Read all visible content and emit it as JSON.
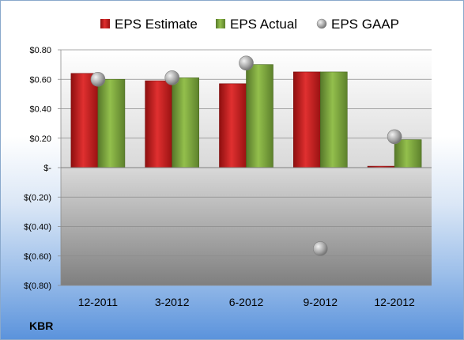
{
  "chart_data": {
    "type": "bar",
    "ticker": "KBR",
    "categories": [
      "12-2011",
      "3-2012",
      "6-2012",
      "9-2012",
      "12-2012"
    ],
    "series": [
      {
        "name": "EPS Estimate",
        "kind": "bar",
        "color": "#cc1f1f",
        "values": [
          0.64,
          0.59,
          0.57,
          0.65,
          0.01
        ]
      },
      {
        "name": "EPS Actual",
        "kind": "bar",
        "color": "#7eaa3a",
        "values": [
          0.6,
          0.61,
          0.7,
          0.65,
          0.19
        ]
      },
      {
        "name": "EPS GAAP",
        "kind": "marker",
        "color": "#a6a6a6",
        "values": [
          0.6,
          0.61,
          0.71,
          -0.55,
          0.21
        ]
      }
    ],
    "y_ticks": [
      0.8,
      0.6,
      0.4,
      0.2,
      0,
      -0.2,
      -0.4,
      -0.6,
      -0.8
    ],
    "y_tick_labels": [
      "$0.80",
      "$0.60",
      "$0.40",
      "$0.20",
      "$-",
      "$(0.20)",
      "$(0.40)",
      "$(0.60)",
      "$(0.80)"
    ],
    "ylim": [
      -0.8,
      0.8
    ],
    "grid": true,
    "legend_position": "top"
  }
}
